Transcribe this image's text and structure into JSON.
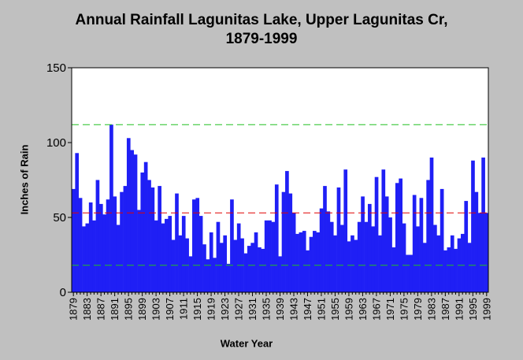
{
  "chart_data": {
    "type": "bar",
    "title_lines": [
      "Annual Rainfall Lagunitas Lake, Upper Lagunitas Cr,",
      "1879-1999"
    ],
    "xlabel": "Water Year",
    "ylabel": "Inches of Rain",
    "ylim": [
      0,
      150
    ],
    "yticks": [
      0,
      50,
      100,
      150
    ],
    "grid": false,
    "legend": "none",
    "bar_color": "#1f1ff5",
    "x": [
      1879,
      1880,
      1881,
      1882,
      1883,
      1884,
      1885,
      1886,
      1887,
      1888,
      1889,
      1890,
      1891,
      1892,
      1893,
      1894,
      1895,
      1896,
      1897,
      1898,
      1899,
      1900,
      1901,
      1902,
      1903,
      1904,
      1905,
      1906,
      1907,
      1908,
      1909,
      1910,
      1911,
      1912,
      1913,
      1914,
      1915,
      1916,
      1917,
      1918,
      1919,
      1920,
      1921,
      1922,
      1923,
      1924,
      1925,
      1926,
      1927,
      1928,
      1929,
      1930,
      1931,
      1932,
      1933,
      1934,
      1935,
      1936,
      1937,
      1938,
      1939,
      1940,
      1941,
      1942,
      1943,
      1944,
      1945,
      1946,
      1947,
      1948,
      1949,
      1950,
      1951,
      1952,
      1953,
      1954,
      1955,
      1956,
      1957,
      1958,
      1959,
      1960,
      1961,
      1962,
      1963,
      1964,
      1965,
      1966,
      1967,
      1968,
      1969,
      1970,
      1971,
      1972,
      1973,
      1974,
      1975,
      1976,
      1977,
      1978,
      1979,
      1980,
      1981,
      1982,
      1983,
      1984,
      1985,
      1986,
      1987,
      1988,
      1989,
      1990,
      1991,
      1992,
      1993,
      1994,
      1995,
      1996,
      1997,
      1998,
      1999
    ],
    "values": [
      69,
      93,
      63,
      44,
      46,
      60,
      48,
      75,
      59,
      52,
      62,
      112,
      64,
      45,
      67,
      71,
      103,
      95,
      92,
      55,
      80,
      87,
      75,
      70,
      48,
      71,
      46,
      49,
      51,
      35,
      66,
      38,
      51,
      36,
      24,
      62,
      63,
      51,
      32,
      22,
      40,
      23,
      47,
      33,
      38,
      19,
      62,
      35,
      46,
      36,
      26,
      31,
      33,
      40,
      30,
      29,
      48,
      48,
      47,
      72,
      24,
      67,
      81,
      66,
      53,
      39,
      40,
      41,
      28,
      37,
      41,
      40,
      56,
      71,
      54,
      47,
      38,
      70,
      45,
      82,
      34,
      38,
      35,
      47,
      64,
      47,
      59,
      44,
      77,
      38,
      82,
      64,
      50,
      30,
      73,
      76,
      46,
      25,
      25,
      65,
      44,
      63,
      33,
      75,
      90,
      45,
      38,
      69,
      28,
      30,
      38,
      29,
      36,
      39,
      61,
      33,
      88,
      67,
      53,
      90,
      53
    ]
  },
  "reference_lines": [
    {
      "value": 112,
      "color": "#20c020"
    },
    {
      "value": 53,
      "color": "#e00000"
    },
    {
      "value": 18,
      "color": "#20c020"
    }
  ],
  "x_tick_labels": [
    "1879",
    "1883",
    "1887",
    "1891",
    "1895",
    "1899",
    "1903",
    "1907",
    "1911",
    "1915",
    "1919",
    "1923",
    "1927",
    "1931",
    "1935",
    "1939",
    "1943",
    "1947",
    "1951",
    "1955",
    "1959",
    "1963",
    "1967",
    "1971",
    "1975",
    "1979",
    "1983",
    "1987",
    "1991",
    "1995",
    "1999"
  ]
}
